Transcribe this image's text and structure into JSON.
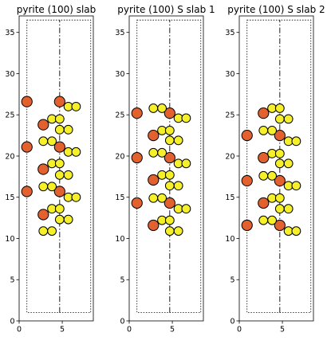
{
  "chart_data": [
    {
      "type": "scatter",
      "title": "pyrite (100) slab",
      "xlim": [
        0,
        8.6
      ],
      "ylim": [
        0,
        37
      ],
      "xticks": [
        0,
        5
      ],
      "yticks": [
        0,
        5,
        10,
        15,
        20,
        25,
        30,
        35
      ],
      "cell": {
        "x": [
          0.9,
          8.3
        ],
        "y": [
          1.0,
          36.5
        ],
        "divider_x": 4.7
      },
      "fe": [
        [
          0.9,
          26.6
        ],
        [
          4.7,
          26.6
        ],
        [
          2.8,
          23.8
        ],
        [
          4.7,
          21.1
        ],
        [
          0.9,
          21.1
        ],
        [
          2.8,
          18.4
        ],
        [
          4.7,
          15.7
        ],
        [
          0.9,
          15.7
        ],
        [
          2.8,
          12.9
        ]
      ],
      "s": [
        [
          5.7,
          26.0
        ],
        [
          6.6,
          26.0
        ],
        [
          3.8,
          24.5
        ],
        [
          4.7,
          24.5
        ],
        [
          4.7,
          23.2
        ],
        [
          5.7,
          23.2
        ],
        [
          2.8,
          21.8
        ],
        [
          3.8,
          21.8
        ],
        [
          5.7,
          20.5
        ],
        [
          6.6,
          20.5
        ],
        [
          3.8,
          19.1
        ],
        [
          4.7,
          19.1
        ],
        [
          4.7,
          17.7
        ],
        [
          5.7,
          17.7
        ],
        [
          2.8,
          16.3
        ],
        [
          3.8,
          16.3
        ],
        [
          5.7,
          15.0
        ],
        [
          6.6,
          15.0
        ],
        [
          3.8,
          13.6
        ],
        [
          4.7,
          13.6
        ],
        [
          4.7,
          12.3
        ],
        [
          5.7,
          12.3
        ],
        [
          2.8,
          10.9
        ],
        [
          3.8,
          10.9
        ]
      ]
    },
    {
      "type": "scatter",
      "title": "pyrite (100) S slab 1",
      "xlim": [
        0,
        8.6
      ],
      "ylim": [
        0,
        37
      ],
      "xticks": [
        0,
        5
      ],
      "yticks": [
        0,
        5,
        10,
        15,
        20,
        25,
        30,
        35
      ],
      "cell": {
        "x": [
          0.9,
          8.3
        ],
        "y": [
          1.0,
          36.5
        ],
        "divider_x": 4.7
      },
      "fe": [
        [
          0.9,
          25.2
        ],
        [
          4.7,
          25.2
        ],
        [
          2.8,
          22.5
        ],
        [
          4.7,
          19.8
        ],
        [
          0.9,
          19.8
        ],
        [
          2.8,
          17.1
        ],
        [
          4.7,
          14.3
        ],
        [
          0.9,
          14.3
        ],
        [
          2.8,
          11.6
        ]
      ],
      "s": [
        [
          2.8,
          25.8
        ],
        [
          3.8,
          25.8
        ],
        [
          5.7,
          24.6
        ],
        [
          6.6,
          24.6
        ],
        [
          3.8,
          23.1
        ],
        [
          4.7,
          23.1
        ],
        [
          4.7,
          21.9
        ],
        [
          5.7,
          21.9
        ],
        [
          2.8,
          20.4
        ],
        [
          3.8,
          20.4
        ],
        [
          5.7,
          19.1
        ],
        [
          6.6,
          19.1
        ],
        [
          3.8,
          17.7
        ],
        [
          4.7,
          17.7
        ],
        [
          4.7,
          16.4
        ],
        [
          5.7,
          16.4
        ],
        [
          2.8,
          14.9
        ],
        [
          3.8,
          14.9
        ],
        [
          5.7,
          13.6
        ],
        [
          6.6,
          13.6
        ],
        [
          3.8,
          12.2
        ],
        [
          4.7,
          12.2
        ],
        [
          4.7,
          10.9
        ],
        [
          5.7,
          10.9
        ]
      ]
    },
    {
      "type": "scatter",
      "title": "pyrite (100) S slab 2",
      "xlim": [
        0,
        8.6
      ],
      "ylim": [
        0,
        37
      ],
      "xticks": [
        0,
        5
      ],
      "yticks": [
        0,
        5,
        10,
        15,
        20,
        25,
        30,
        35
      ],
      "cell": {
        "x": [
          0.9,
          8.3
        ],
        "y": [
          1.0,
          36.5
        ],
        "divider_x": 4.7
      },
      "fe": [
        [
          2.8,
          25.2
        ],
        [
          4.7,
          22.5
        ],
        [
          0.9,
          22.5
        ],
        [
          2.8,
          19.8
        ],
        [
          4.7,
          17.0
        ],
        [
          0.9,
          17.0
        ],
        [
          2.8,
          14.3
        ],
        [
          4.7,
          11.6
        ],
        [
          0.9,
          11.6
        ]
      ],
      "s": [
        [
          3.8,
          25.8
        ],
        [
          4.7,
          25.8
        ],
        [
          4.7,
          24.5
        ],
        [
          5.7,
          24.5
        ],
        [
          2.8,
          23.1
        ],
        [
          3.8,
          23.1
        ],
        [
          5.7,
          21.8
        ],
        [
          6.6,
          21.8
        ],
        [
          3.8,
          20.3
        ],
        [
          4.7,
          20.3
        ],
        [
          4.7,
          19.1
        ],
        [
          5.7,
          19.1
        ],
        [
          2.8,
          17.6
        ],
        [
          3.8,
          17.6
        ],
        [
          5.7,
          16.4
        ],
        [
          6.6,
          16.4
        ],
        [
          3.8,
          14.9
        ],
        [
          4.7,
          14.9
        ],
        [
          4.7,
          13.6
        ],
        [
          5.7,
          13.6
        ],
        [
          2.8,
          12.2
        ],
        [
          3.8,
          12.2
        ],
        [
          5.7,
          10.9
        ],
        [
          6.6,
          10.9
        ]
      ]
    }
  ],
  "colors": {
    "fe": "#e2612f",
    "s": "#f5f02a"
  }
}
